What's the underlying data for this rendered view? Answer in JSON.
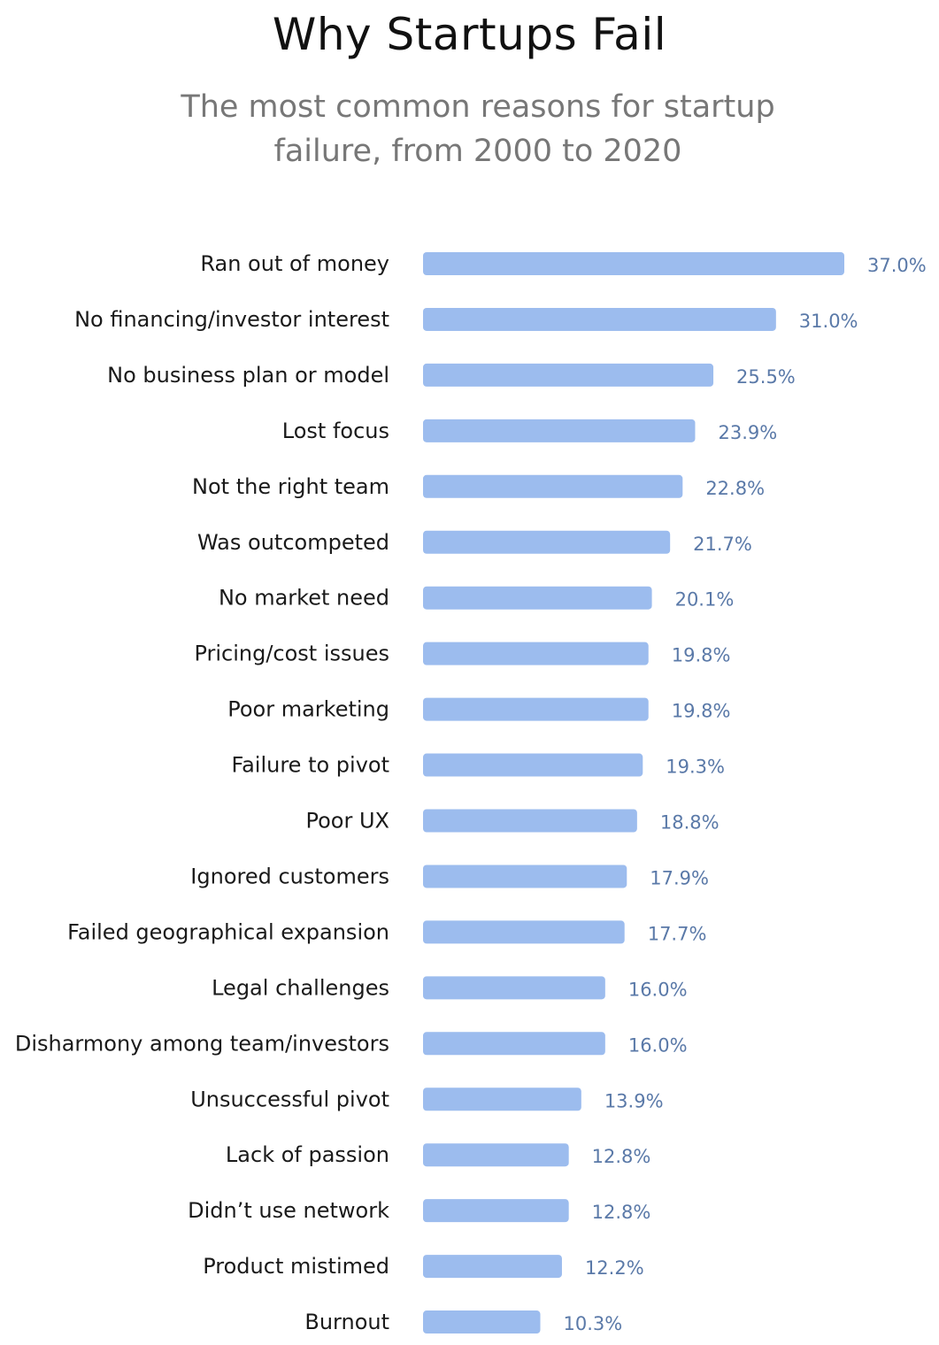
{
  "chart_data": {
    "type": "bar",
    "orientation": "horizontal",
    "title": "Why Startups Fail",
    "subtitle": "The most common reasons for startup failure, from 2000 to 2020",
    "categories": [
      "Ran out of money",
      "No financing/investor interest",
      "No business plan or model",
      "Lost focus",
      "Not the right team",
      "Was outcompeted",
      "No market need",
      "Pricing/cost issues",
      "Poor marketing",
      "Failure to pivot",
      "Poor UX",
      "Ignored customers",
      "Failed geographical expansion",
      "Legal challenges",
      "Disharmony among team/investors",
      "Unsuccessful pivot",
      "Lack of passion",
      "Didn’t use network",
      "Product mistimed",
      "Burnout"
    ],
    "values": [
      37.0,
      31.0,
      25.5,
      23.9,
      22.8,
      21.7,
      20.1,
      19.8,
      19.8,
      19.3,
      18.8,
      17.9,
      17.7,
      16.0,
      16.0,
      13.9,
      12.8,
      12.8,
      12.2,
      10.3
    ],
    "value_labels": [
      "37.0%",
      "31.0%",
      "25.5%",
      "23.9%",
      "22.8%",
      "21.7%",
      "20.1%",
      "19.8%",
      "19.8%",
      "19.3%",
      "18.8%",
      "17.9%",
      "17.7%",
      "16.0%",
      "16.0%",
      "13.9%",
      "12.8%",
      "12.8%",
      "12.2%",
      "10.3%"
    ],
    "xlabel": "",
    "ylabel": "",
    "xlim": [
      0,
      37
    ],
    "grid": false,
    "legend": "none",
    "colors": {
      "bar": "#9cbcee",
      "value_label": "#5a79a8",
      "category_label": "#1a1a1a",
      "title": "#111111",
      "subtitle": "#777777"
    }
  }
}
